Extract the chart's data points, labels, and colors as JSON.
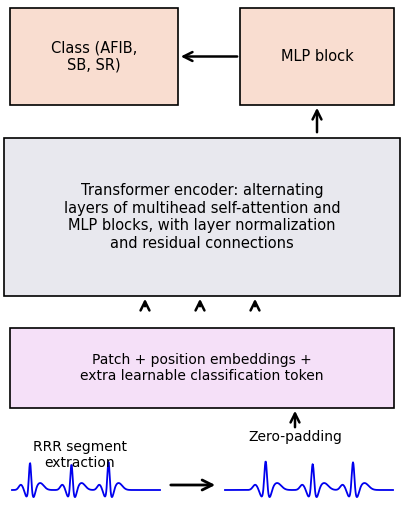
{
  "fig_width": 4.04,
  "fig_height": 5.2,
  "dpi": 100,
  "bg_color": "#ffffff",
  "box_class_color": "#f9ddd0",
  "box_mlp_color": "#f9ddd0",
  "box_transformer_color": "#e8e8ee",
  "box_patch_color": "#f5e0f8",
  "text_color": "#000000",
  "arrow_color": "#000000",
  "ecg_color": "#0000ee",
  "class_text": "Class (AFIB,\nSB, SR)",
  "mlp_text": "MLP block",
  "transformer_text": "Transformer encoder: alternating\nlayers of multihead self-attention and\nMLP blocks, with layer normalization\nand residual connections",
  "patch_text": "Patch + position embeddings +\nextra learnable classification token",
  "rrr_text": "RRR segment\nextraction",
  "zero_text": "Zero-padding",
  "font_size_main": 10.5,
  "font_size_small": 10
}
